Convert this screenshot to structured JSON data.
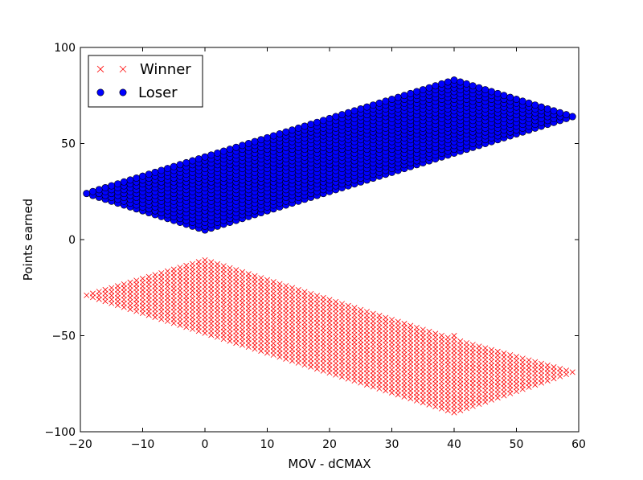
{
  "chart_data": {
    "type": "scatter",
    "title": "",
    "xlabel": "MOV - dCMAX",
    "ylabel": "Points earned",
    "xlim": [
      -20,
      60
    ],
    "ylim": [
      -100,
      100
    ],
    "xticks": [
      -20,
      -10,
      0,
      10,
      20,
      30,
      40,
      50,
      60
    ],
    "yticks": [
      -100,
      -50,
      0,
      50,
      100
    ],
    "xtick_labels": [
      "−20",
      "−10",
      "0",
      "10",
      "20",
      "30",
      "40",
      "50",
      "60"
    ],
    "ytick_labels": [
      "−100",
      "−50",
      "0",
      "50",
      "100"
    ],
    "grid": false,
    "legend_position": "top-left",
    "series": [
      {
        "name": "Winner",
        "marker": "x",
        "color": "#ff0000",
        "region_vertices": [
          [
            -19,
            -29
          ],
          [
            0,
            -10
          ],
          [
            40,
            -90
          ],
          [
            59,
            -69
          ]
        ],
        "x_range": [
          -19,
          59
        ],
        "x_step": 1,
        "y_step": 2
      },
      {
        "name": "Loser",
        "marker": "circle",
        "color": "#0000ff",
        "region_vertices": [
          [
            -19,
            24
          ],
          [
            0,
            5
          ],
          [
            40,
            83
          ],
          [
            59,
            64
          ]
        ],
        "x_range": [
          -19,
          59
        ],
        "x_step": 1,
        "y_step": 2
      }
    ]
  }
}
